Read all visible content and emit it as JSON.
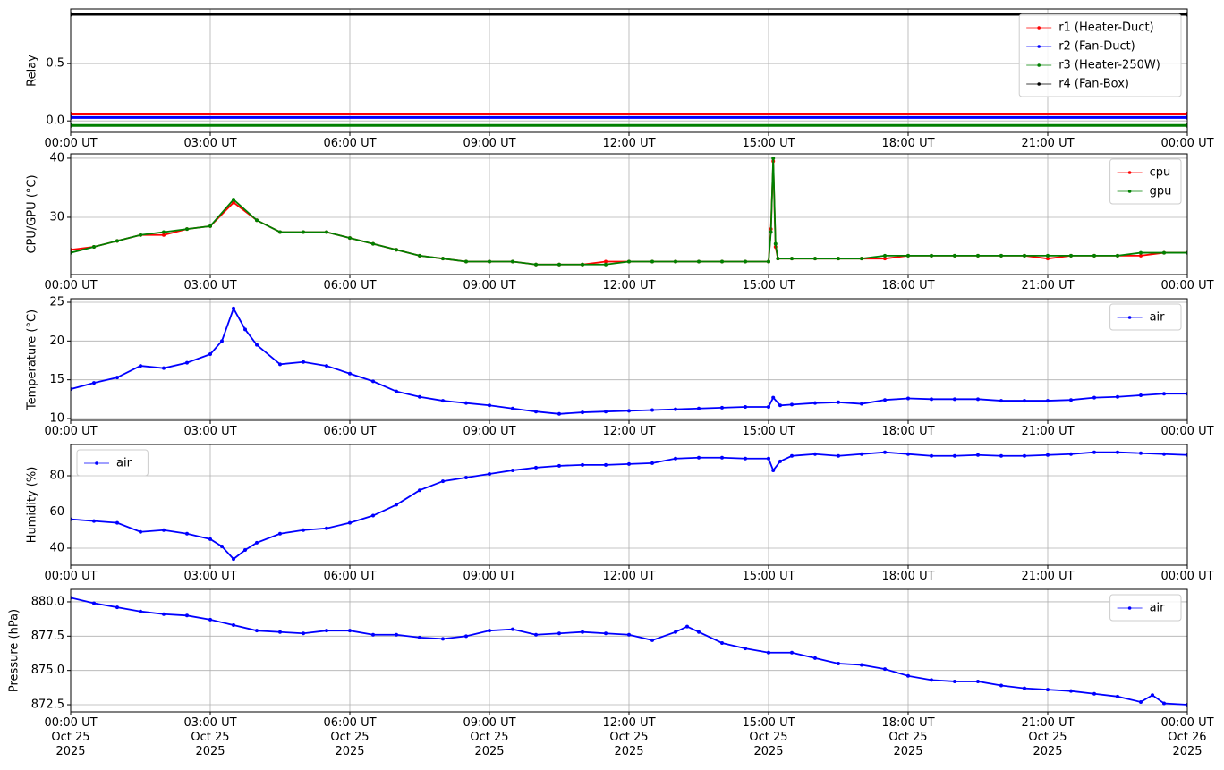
{
  "chart_data": [
    {
      "type": "line",
      "ylabel": "Relay",
      "x": [
        0,
        24
      ],
      "xlim": [
        0,
        24
      ],
      "ylim": [
        -0.1,
        0.977
      ],
      "xticks": [
        {
          "value": 0,
          "label": "00:00 UT"
        },
        {
          "value": 3,
          "label": "03:00 UT"
        },
        {
          "value": 6,
          "label": "06:00 UT"
        },
        {
          "value": 9,
          "label": "09:00 UT"
        },
        {
          "value": 12,
          "label": "12:00 UT"
        },
        {
          "value": 15,
          "label": "15:00 UT"
        },
        {
          "value": 18,
          "label": "18:00 UT"
        },
        {
          "value": 21,
          "label": "21:00 UT"
        },
        {
          "value": 24,
          "label": "00:00 UT"
        }
      ],
      "yticks": [
        {
          "value": 0,
          "label": "0.0"
        },
        0.5
      ],
      "grid": true,
      "legend": "upper right",
      "series": [
        {
          "name": "r1 (Heater-Duct)",
          "color": "#ff0000",
          "values": [
            0.06,
            0.06
          ]
        },
        {
          "name": "r2 (Fan-Duct)",
          "color": "#0000ff",
          "values": [
            0.03,
            0.03
          ]
        },
        {
          "name": "r3 (Heater-250W)",
          "color": "#008000",
          "values": [
            -0.04,
            -0.04
          ]
        },
        {
          "name": "r4 (Fan-Box)",
          "color": "#000000",
          "values": [
            0.93,
            0.93
          ]
        }
      ]
    },
    {
      "type": "line",
      "ylabel": "CPU/GPU (°C)",
      "x": [
        0,
        0.5,
        1,
        1.5,
        2,
        2.5,
        3,
        3.5,
        4,
        4.5,
        5,
        5.5,
        6,
        6.5,
        7,
        7.5,
        8,
        8.5,
        9,
        9.5,
        10,
        10.5,
        11,
        11.5,
        12,
        12.5,
        13,
        13.5,
        14,
        14.5,
        15,
        15.05,
        15.1,
        15.15,
        15.2,
        15.5,
        16,
        16.5,
        17,
        17.5,
        18,
        18.5,
        19,
        19.5,
        20,
        20.5,
        21,
        21.5,
        22,
        22.5,
        23,
        23.5,
        24
      ],
      "xlim": [
        0,
        24
      ],
      "ylim": [
        20.3,
        40.75
      ],
      "xticks": [
        {
          "value": 0,
          "label": "00:00 UT"
        },
        {
          "value": 3,
          "label": "03:00 UT"
        },
        {
          "value": 6,
          "label": "06:00 UT"
        },
        {
          "value": 9,
          "label": "09:00 UT"
        },
        {
          "value": 12,
          "label": "12:00 UT"
        },
        {
          "value": 15,
          "label": "15:00 UT"
        },
        {
          "value": 18,
          "label": "18:00 UT"
        },
        {
          "value": 21,
          "label": "21:00 UT"
        },
        {
          "value": 24,
          "label": "00:00 UT"
        }
      ],
      "yticks": [
        30,
        40
      ],
      "grid": true,
      "legend": "upper right",
      "series": [
        {
          "name": "cpu",
          "color": "#ff0000",
          "values": [
            24.5,
            25,
            26,
            27,
            27,
            28,
            28.5,
            32.5,
            29.5,
            27.5,
            27.5,
            27.5,
            26.5,
            25.5,
            24.5,
            23.5,
            23,
            22.5,
            22.5,
            22.5,
            22,
            22,
            22,
            22.5,
            22.5,
            22.5,
            22.5,
            22.5,
            22.5,
            22.5,
            22.5,
            28,
            39.5,
            25,
            23,
            23,
            23,
            23,
            23,
            23,
            23.5,
            23.5,
            23.5,
            23.5,
            23.5,
            23.5,
            23,
            23.5,
            23.5,
            23.5,
            23.5,
            24,
            24
          ]
        },
        {
          "name": "gpu",
          "color": "#008000",
          "values": [
            24,
            25,
            26,
            27,
            27.5,
            28,
            28.5,
            33,
            29.5,
            27.5,
            27.5,
            27.5,
            26.5,
            25.5,
            24.5,
            23.5,
            23,
            22.5,
            22.5,
            22.5,
            22,
            22,
            22,
            22,
            22.5,
            22.5,
            22.5,
            22.5,
            22.5,
            22.5,
            22.5,
            27.5,
            40,
            25.5,
            23,
            23,
            23,
            23,
            23,
            23.5,
            23.5,
            23.5,
            23.5,
            23.5,
            23.5,
            23.5,
            23.5,
            23.5,
            23.5,
            23.5,
            24,
            24,
            24
          ]
        }
      ]
    },
    {
      "type": "line",
      "ylabel": "Temperature (°C)",
      "x": [
        0,
        0.5,
        1,
        1.5,
        2,
        2.5,
        3,
        3.25,
        3.5,
        3.75,
        4,
        4.5,
        5,
        5.5,
        6,
        6.5,
        7,
        7.5,
        8,
        8.5,
        9,
        9.5,
        10,
        10.5,
        11,
        11.5,
        12,
        12.5,
        13,
        13.5,
        14,
        14.5,
        15,
        15.1,
        15.25,
        15.5,
        16,
        16.5,
        17,
        17.5,
        18,
        18.5,
        19,
        19.5,
        20,
        20.5,
        21,
        21.5,
        22,
        22.5,
        23,
        23.5,
        24
      ],
      "xlim": [
        0,
        24
      ],
      "ylim": [
        9.77,
        25.46
      ],
      "xticks": [
        {
          "value": 0,
          "label": "00:00 UT"
        },
        {
          "value": 3,
          "label": "03:00 UT"
        },
        {
          "value": 6,
          "label": "06:00 UT"
        },
        {
          "value": 9,
          "label": "09:00 UT"
        },
        {
          "value": 12,
          "label": "12:00 UT"
        },
        {
          "value": 15,
          "label": "15:00 UT"
        },
        {
          "value": 18,
          "label": "18:00 UT"
        },
        {
          "value": 21,
          "label": "21:00 UT"
        },
        {
          "value": 24,
          "label": "00:00 UT"
        }
      ],
      "yticks": [
        10,
        15,
        20,
        25
      ],
      "grid": true,
      "legend": "upper right",
      "series": [
        {
          "name": "air",
          "color": "#0000ff",
          "values": [
            13.8,
            14.6,
            15.3,
            16.8,
            16.5,
            17.2,
            18.3,
            20,
            24.2,
            21.5,
            19.5,
            17,
            17.3,
            16.8,
            15.8,
            14.8,
            13.5,
            12.8,
            12.3,
            12,
            11.7,
            11.3,
            10.9,
            10.6,
            10.8,
            10.9,
            11,
            11.1,
            11.2,
            11.3,
            11.4,
            11.5,
            11.5,
            12.7,
            11.7,
            11.8,
            12,
            12.1,
            11.9,
            12.4,
            12.6,
            12.5,
            12.5,
            12.5,
            12.3,
            12.3,
            12.3,
            12.4,
            12.7,
            12.8,
            13,
            13.2,
            13.2
          ]
        }
      ]
    },
    {
      "type": "line",
      "ylabel": "Humidity (%)",
      "x": [
        0,
        0.5,
        1,
        1.5,
        2,
        2.5,
        3,
        3.25,
        3.5,
        3.75,
        4,
        4.5,
        5,
        5.5,
        6,
        6.5,
        7,
        7.5,
        8,
        8.5,
        9,
        9.5,
        10,
        10.5,
        11,
        11.5,
        12,
        12.5,
        13,
        13.5,
        14,
        14.5,
        15,
        15.1,
        15.25,
        15.5,
        16,
        16.5,
        17,
        17.5,
        18,
        18.5,
        19,
        19.5,
        20,
        20.5,
        21,
        21.5,
        22,
        22.5,
        23,
        23.5,
        24
      ],
      "xlim": [
        0,
        24
      ],
      "ylim": [
        30.6,
        97.3
      ],
      "xticks": [
        {
          "value": 0,
          "label": "00:00 UT"
        },
        {
          "value": 3,
          "label": "03:00 UT"
        },
        {
          "value": 6,
          "label": "06:00 UT"
        },
        {
          "value": 9,
          "label": "09:00 UT"
        },
        {
          "value": 12,
          "label": "12:00 UT"
        },
        {
          "value": 15,
          "label": "15:00 UT"
        },
        {
          "value": 18,
          "label": "18:00 UT"
        },
        {
          "value": 21,
          "label": "21:00 UT"
        },
        {
          "value": 24,
          "label": "00:00 UT"
        }
      ],
      "yticks": [
        40,
        60,
        80
      ],
      "grid": true,
      "legend": "upper left",
      "series": [
        {
          "name": "air",
          "color": "#0000ff",
          "values": [
            56,
            55,
            54,
            49,
            50,
            48,
            45,
            41,
            34,
            39,
            43,
            48,
            50,
            51,
            54,
            58,
            64,
            72,
            77,
            79,
            81,
            83,
            84.5,
            85.5,
            86,
            86,
            86.5,
            87,
            89.5,
            90,
            90,
            89.5,
            89.5,
            83,
            88,
            91,
            92,
            91,
            92,
            93,
            92,
            91,
            91,
            91.5,
            91,
            91,
            91.5,
            92,
            93,
            93,
            92.5,
            92,
            91.5
          ]
        }
      ]
    },
    {
      "type": "line",
      "ylabel": "Pressure (hPa)",
      "x": [
        0,
        0.5,
        1,
        1.5,
        2,
        2.5,
        3,
        3.5,
        4,
        4.5,
        5,
        5.5,
        6,
        6.5,
        7,
        7.5,
        8,
        8.5,
        9,
        9.5,
        10,
        10.5,
        11,
        11.5,
        12,
        12.5,
        13,
        13.25,
        13.5,
        14,
        14.5,
        15,
        15.5,
        16,
        16.5,
        17,
        17.5,
        18,
        18.5,
        19,
        19.5,
        20,
        20.5,
        21,
        21.5,
        22,
        22.5,
        23,
        23.25,
        23.5,
        24
      ],
      "xlim": [
        0,
        24
      ],
      "ylim": [
        871.98,
        880.91
      ],
      "xticks": [
        {
          "value": 0,
          "label": "00:00 UT\nOct 25\n2025"
        },
        {
          "value": 3,
          "label": "03:00 UT\nOct 25\n2025"
        },
        {
          "value": 6,
          "label": "06:00 UT\nOct 25\n2025"
        },
        {
          "value": 9,
          "label": "09:00 UT\nOct 25\n2025"
        },
        {
          "value": 12,
          "label": "12:00 UT\nOct 25\n2025"
        },
        {
          "value": 15,
          "label": "15:00 UT\nOct 25\n2025"
        },
        {
          "value": 18,
          "label": "18:00 UT\nOct 25\n2025"
        },
        {
          "value": 21,
          "label": "21:00 UT\nOct 25\n2025"
        },
        {
          "value": 24,
          "label": "00:00 UT\nOct 26\n2025"
        }
      ],
      "yticks": [
        872.5,
        {
          "value": 875,
          "label": "875.0"
        },
        877.5,
        {
          "value": 880,
          "label": "880.0"
        }
      ],
      "grid": true,
      "legend": "upper right",
      "series": [
        {
          "name": "air",
          "color": "#0000ff",
          "values": [
            880.3,
            879.9,
            879.6,
            879.3,
            879.1,
            879,
            878.7,
            878.3,
            877.9,
            877.8,
            877.7,
            877.9,
            877.9,
            877.6,
            877.6,
            877.4,
            877.3,
            877.5,
            877.9,
            878,
            877.6,
            877.7,
            877.8,
            877.7,
            877.6,
            877.2,
            877.8,
            878.2,
            877.8,
            877,
            876.6,
            876.3,
            876.3,
            875.9,
            875.5,
            875.4,
            875.1,
            874.6,
            874.3,
            874.2,
            874.2,
            873.9,
            873.7,
            873.6,
            873.5,
            873.3,
            873.1,
            872.7,
            873.2,
            872.6,
            872.5
          ]
        }
      ]
    }
  ]
}
